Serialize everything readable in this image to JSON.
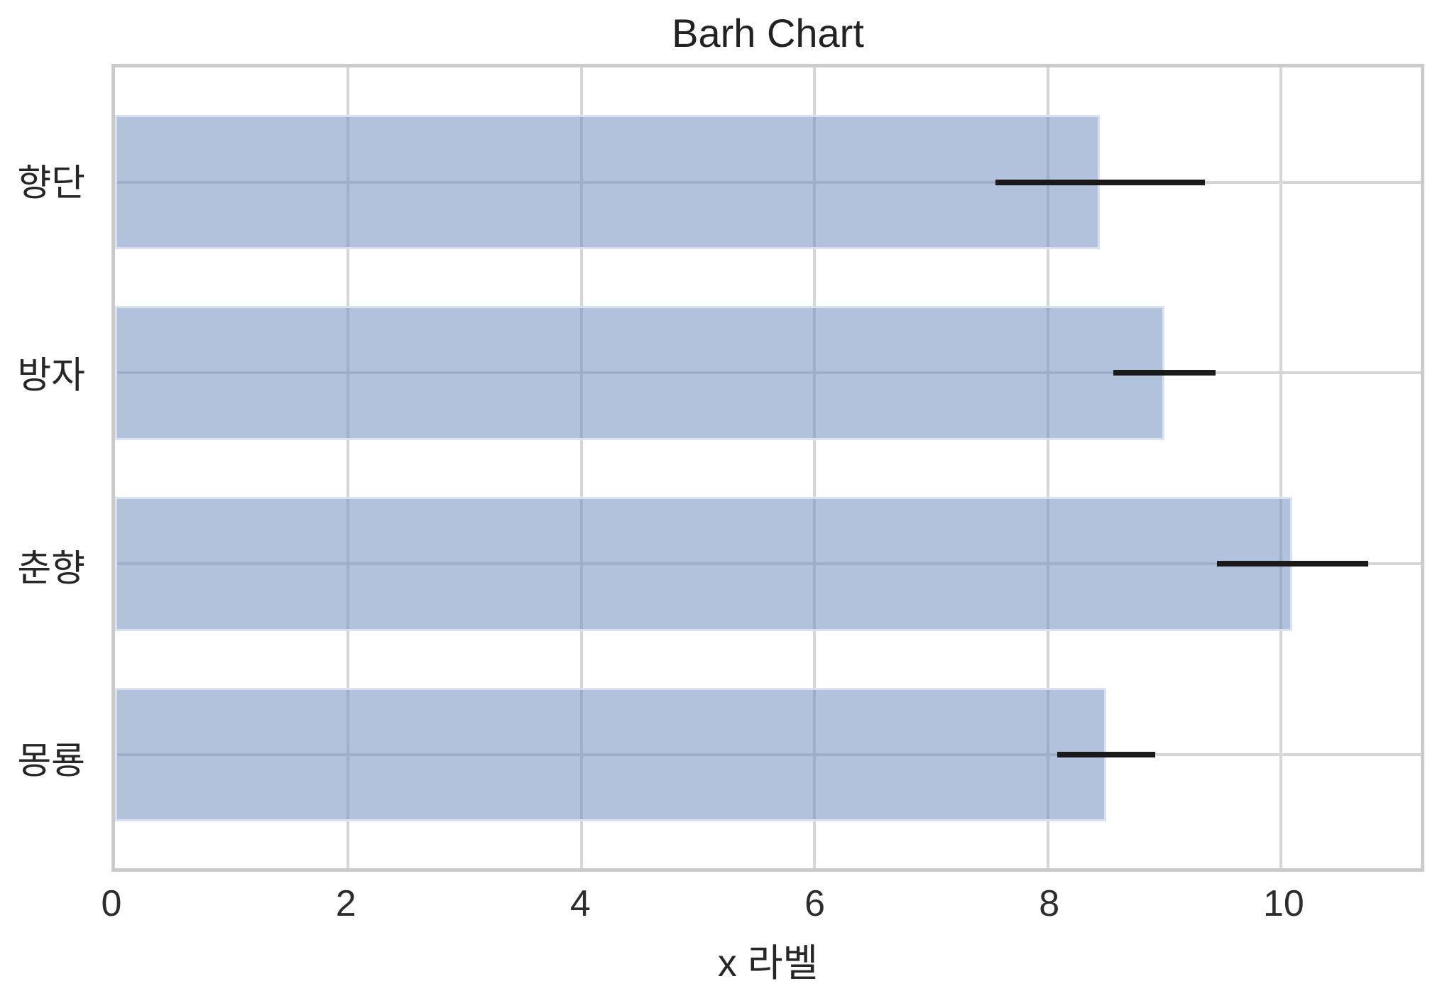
{
  "title": "Barh Chart",
  "chart_data": {
    "type": "bar",
    "orientation": "horizontal",
    "title": "Barh Chart",
    "xlabel": "x 라벨",
    "ylabel": "",
    "categories": [
      "향단",
      "방자",
      "춘향",
      "몽룡"
    ],
    "values": [
      8.45,
      9.0,
      10.1,
      8.5
    ],
    "errors": [
      0.9,
      0.44,
      0.65,
      0.42
    ],
    "xticks": [
      0,
      2,
      4,
      6,
      8,
      10
    ],
    "xlim": [
      0,
      11.2
    ],
    "grid": true,
    "legend": "none",
    "colors": {
      "bar_fill": "rgba(114,143,192,0.55)",
      "bar_edge": "#d9e2f1",
      "grid": "#d6d6d6",
      "spine": "#cbcbcb",
      "error_bar": "#1a1a1a",
      "title_text": "#222222",
      "tick_text": "#2d2d2d",
      "background": "#ffffff"
    }
  }
}
